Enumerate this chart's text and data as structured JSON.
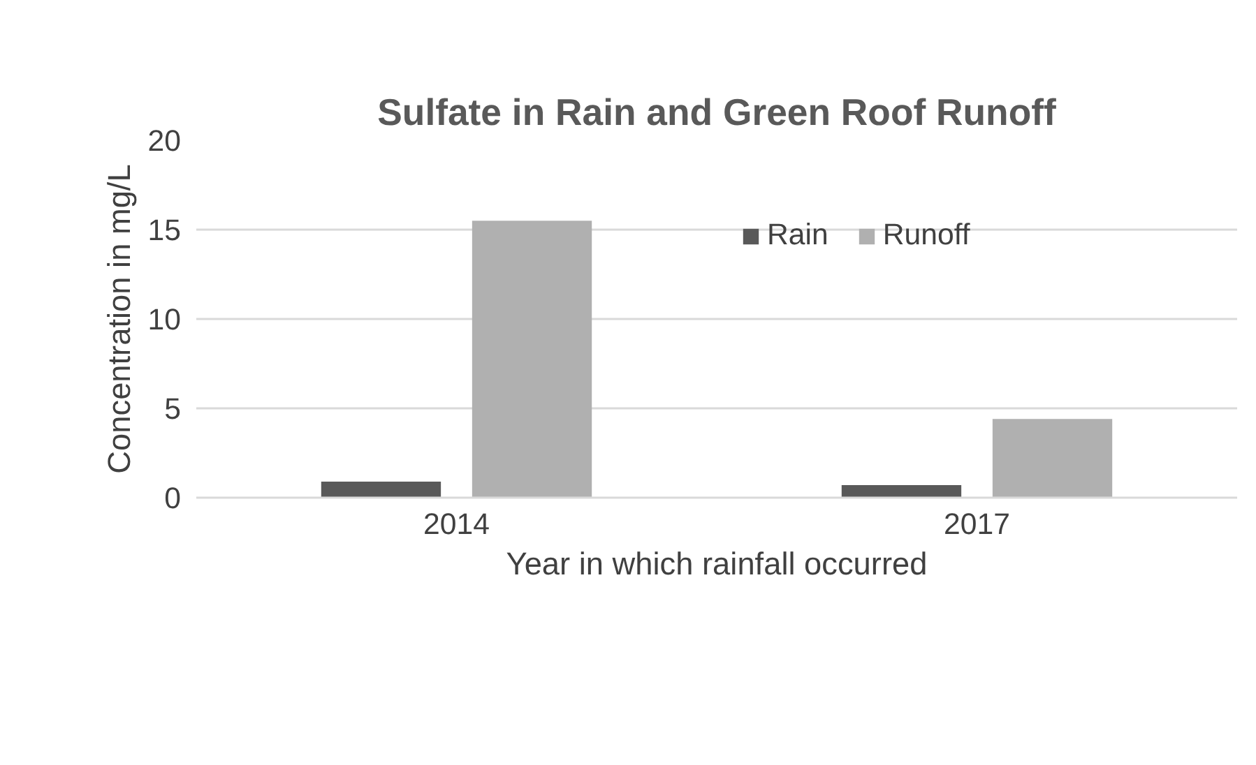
{
  "chart_data": {
    "type": "bar",
    "title": "Sulfate in Rain and Green Roof Runoff",
    "xlabel": "Year in which rainfall occurred",
    "ylabel": "Concentration in mg/L",
    "categories": [
      "2014",
      "2017"
    ],
    "series": [
      {
        "name": "Rain",
        "color": "#595959",
        "values": [
          0.9,
          0.7
        ]
      },
      {
        "name": "Runoff",
        "color": "#b0b0b0",
        "values": [
          15.5,
          4.4
        ]
      }
    ],
    "ylim": [
      0,
      20
    ],
    "yticks": [
      0,
      5,
      10,
      15,
      20
    ],
    "grid": "y",
    "legend": "top right"
  }
}
